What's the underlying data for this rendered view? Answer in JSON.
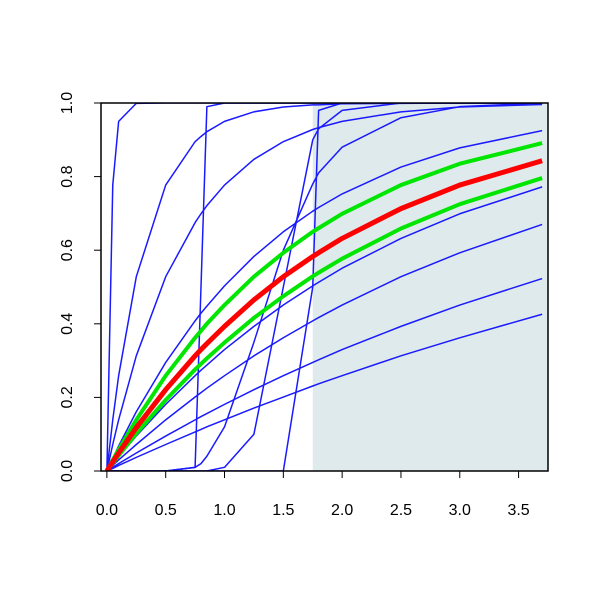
{
  "chart_data": {
    "type": "line",
    "x": [
      0,
      0.05,
      0.1,
      0.25,
      0.5,
      0.75,
      0.8,
      0.85,
      1,
      1.25,
      1.5,
      1.75,
      1.8,
      2,
      2.5,
      3,
      3.7
    ],
    "xlim": [
      -0.05,
      3.75
    ],
    "ylim": [
      0,
      1
    ],
    "xticks": [
      {
        "value": 0,
        "label": "0.0"
      },
      {
        "value": 0.5,
        "label": "0.5"
      },
      {
        "value": 1,
        "label": "1.0"
      },
      {
        "value": 1.5,
        "label": "1.5"
      },
      {
        "value": 2,
        "label": "2.0"
      },
      {
        "value": 2.5,
        "label": "2.5"
      },
      {
        "value": 3,
        "label": "3.0"
      },
      {
        "value": 3.5,
        "label": "3.5"
      }
    ],
    "yticks": [
      {
        "value": 0,
        "label": "0.0"
      },
      {
        "value": 0.2,
        "label": "0.2"
      },
      {
        "value": 0.4,
        "label": "0.4"
      },
      {
        "value": 0.6,
        "label": "0.6"
      },
      {
        "value": 0.8,
        "label": "0.8"
      },
      {
        "value": 1,
        "label": "1.0"
      }
    ],
    "shade": {
      "xlim": [
        1.75,
        3.75
      ],
      "color": "#deeaeb"
    },
    "series": [
      {
        "color": "#1a1aff",
        "width": 1.5,
        "values": [
          0,
          0.007,
          0.015,
          0.037,
          0.072,
          0.106,
          0.113,
          0.12,
          0.139,
          0.171,
          0.201,
          0.231,
          0.237,
          0.259,
          0.313,
          0.362,
          0.426
        ]
      },
      {
        "color": "#1a1aff",
        "width": 1.5,
        "values": [
          0,
          0.01,
          0.02,
          0.049,
          0.095,
          0.139,
          0.148,
          0.156,
          0.181,
          0.221,
          0.259,
          0.295,
          0.302,
          0.33,
          0.393,
          0.451,
          0.523
        ]
      },
      {
        "color": "#1a1aff",
        "width": 1.5,
        "values": [
          0,
          0.015,
          0.03,
          0.072,
          0.139,
          0.201,
          0.213,
          0.225,
          0.259,
          0.313,
          0.362,
          0.408,
          0.417,
          0.451,
          0.528,
          0.593,
          0.67
        ]
      },
      {
        "color": "#1a1aff",
        "width": 1.5,
        "values": [
          0,
          0.02,
          0.039,
          0.095,
          0.181,
          0.259,
          0.274,
          0.288,
          0.33,
          0.393,
          0.451,
          0.503,
          0.513,
          0.551,
          0.632,
          0.699,
          0.772
        ]
      },
      {
        "color": "#1a1aff",
        "width": 1.5,
        "values": [
          0,
          0.034,
          0.068,
          0.161,
          0.295,
          0.408,
          0.429,
          0.448,
          0.503,
          0.583,
          0.65,
          0.706,
          0.716,
          0.753,
          0.826,
          0.878,
          0.925
        ]
      },
      {
        "color": "#1a1aff",
        "width": 1.5,
        "values": [
          0,
          0.072,
          0.139,
          0.313,
          0.528,
          0.675,
          0.699,
          0.721,
          0.777,
          0.847,
          0.895,
          0.928,
          0.933,
          0.95,
          0.976,
          0.989,
          0.996
        ]
      },
      {
        "color": "#1a1aff",
        "width": 1.5,
        "values": [
          0,
          0.139,
          0.259,
          0.528,
          0.777,
          0.895,
          0.909,
          0.922,
          0.95,
          0.976,
          0.989,
          0.995,
          0.995,
          0.998,
          0.999,
          1,
          1
        ]
      },
      {
        "color": "#1a1aff",
        "width": 1.5,
        "values": [
          0,
          0.777,
          0.95,
          0.999,
          1,
          1,
          1,
          1,
          1,
          1,
          1,
          1,
          1,
          1,
          1,
          1,
          1
        ]
      },
      {
        "color": "#1a1aff",
        "width": 1.5,
        "values": [
          0,
          0,
          0,
          0,
          0,
          0.01,
          0.5,
          0.99,
          1,
          1,
          1,
          1,
          1,
          1,
          1,
          1,
          1
        ]
      },
      {
        "color": "#1a1aff",
        "width": 1.5,
        "values": [
          0,
          0,
          0,
          0,
          0,
          0,
          0,
          0,
          0,
          0,
          0,
          0.5,
          0.98,
          1,
          1,
          1,
          1
        ]
      },
      {
        "color": "#1a1aff",
        "width": 1.5,
        "values": [
          0,
          0,
          0,
          0,
          0,
          0,
          0,
          0,
          0.01,
          0.1,
          0.5,
          0.9,
          0.93,
          0.98,
          1,
          1,
          1
        ]
      },
      {
        "color": "#1a1aff",
        "width": 1.5,
        "values": [
          0,
          0,
          0,
          0,
          0,
          0.01,
          0.02,
          0.04,
          0.12,
          0.35,
          0.6,
          0.78,
          0.81,
          0.88,
          0.96,
          0.99,
          1
        ]
      },
      {
        "color": "#00e600",
        "width": 4,
        "values": [
          0,
          0.03,
          0.058,
          0.139,
          0.259,
          0.362,
          0.381,
          0.4,
          0.451,
          0.528,
          0.593,
          0.65,
          0.66,
          0.699,
          0.777,
          0.835,
          0.891
        ]
      },
      {
        "color": "#00e600",
        "width": 4,
        "values": [
          0,
          0.021,
          0.042,
          0.102,
          0.193,
          0.276,
          0.291,
          0.306,
          0.349,
          0.416,
          0.475,
          0.529,
          0.539,
          0.577,
          0.659,
          0.725,
          0.796
        ]
      },
      {
        "color": "#ff0000",
        "width": 5,
        "values": [
          0,
          0.025,
          0.049,
          0.118,
          0.221,
          0.313,
          0.33,
          0.346,
          0.393,
          0.465,
          0.528,
          0.583,
          0.593,
          0.632,
          0.713,
          0.777,
          0.843
        ]
      }
    ]
  }
}
